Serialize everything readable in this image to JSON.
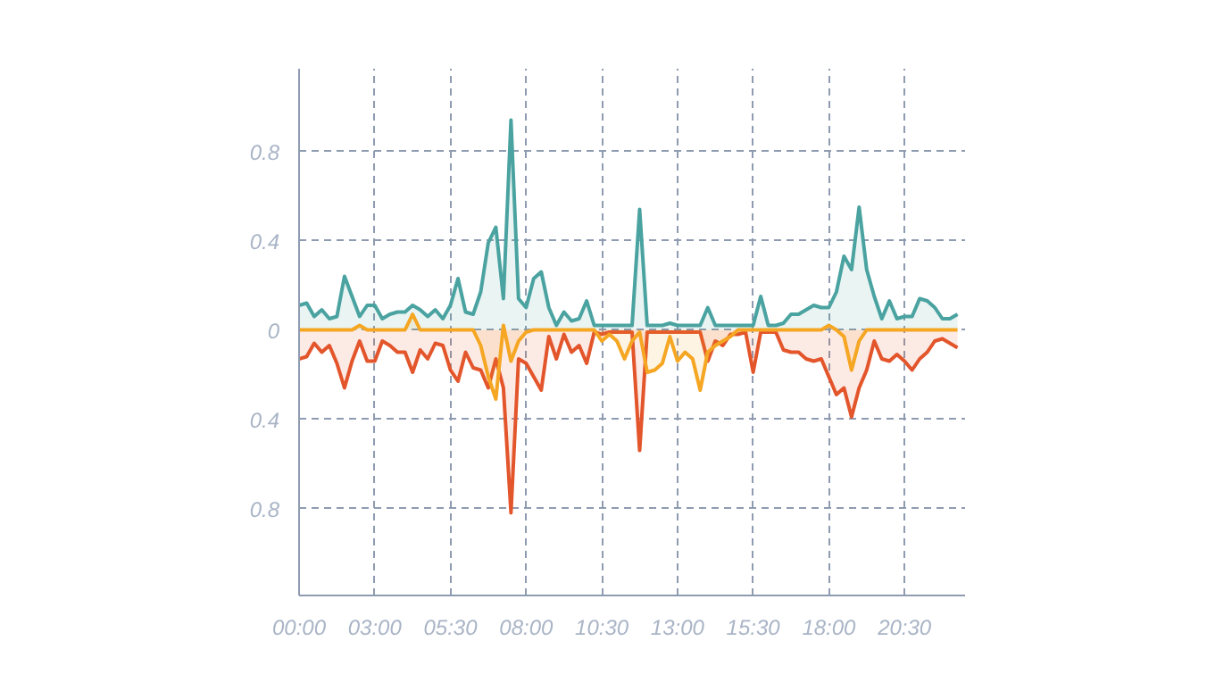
{
  "chart_data": {
    "type": "area",
    "categories": [
      "00:00",
      null,
      null,
      null,
      null,
      null,
      null,
      null,
      null,
      null,
      "03:00",
      null,
      null,
      null,
      null,
      null,
      null,
      null,
      null,
      null,
      "05:30",
      null,
      null,
      null,
      null,
      null,
      null,
      null,
      null,
      null,
      "08:00",
      null,
      null,
      null,
      null,
      null,
      null,
      null,
      null,
      null,
      "10:30",
      null,
      null,
      null,
      null,
      null,
      null,
      null,
      null,
      null,
      "13:00",
      null,
      null,
      null,
      null,
      null,
      null,
      null,
      null,
      null,
      "15:30",
      null,
      null,
      null,
      null,
      null,
      null,
      null,
      null,
      null,
      "18:00",
      null,
      null,
      null,
      null,
      null,
      null,
      null,
      null,
      null,
      "20:30",
      null,
      null,
      null,
      null,
      null,
      null,
      null
    ],
    "series": [
      {
        "color": "#4aa3a0",
        "values": [
          0.11,
          0.12,
          0.06,
          0.09,
          0.05,
          0.06,
          0.24,
          0.15,
          0.06,
          0.11,
          0.11,
          0.05,
          0.07,
          0.08,
          0.08,
          0.11,
          0.09,
          0.06,
          0.09,
          0.05,
          0.11,
          0.23,
          0.08,
          0.07,
          0.17,
          0.39,
          0.46,
          0.14,
          0.94,
          0.14,
          0.1,
          0.23,
          0.26,
          0.1,
          0.02,
          0.08,
          0.04,
          0.05,
          0.13,
          0.02,
          0.02,
          0.02,
          0.02,
          0.02,
          0.02,
          0.54,
          0.02,
          0.02,
          0.02,
          0.03,
          0.02,
          0.02,
          0.02,
          0.02,
          0.1,
          0.02,
          0.02,
          0.02,
          0.02,
          0.02,
          0.02,
          0.15,
          0.02,
          0.02,
          0.03,
          0.07,
          0.07,
          0.09,
          0.11,
          0.1,
          0.1,
          0.17,
          0.33,
          0.27,
          0.55,
          0.27,
          0.15,
          0.05,
          0.13,
          0.05,
          0.06,
          0.06,
          0.14,
          0.13,
          0.1,
          0.05,
          0.05,
          0.07
        ]
      },
      {
        "color": "#e3552b",
        "values": [
          -0.13,
          -0.12,
          -0.06,
          -0.1,
          -0.07,
          -0.15,
          -0.26,
          -0.14,
          -0.05,
          -0.14,
          -0.14,
          -0.05,
          -0.07,
          -0.1,
          -0.1,
          -0.19,
          -0.09,
          -0.13,
          -0.06,
          -0.07,
          -0.18,
          -0.23,
          -0.1,
          -0.17,
          -0.18,
          -0.26,
          -0.13,
          -0.26,
          -0.82,
          -0.13,
          -0.15,
          -0.21,
          -0.27,
          -0.03,
          -0.13,
          -0.02,
          -0.1,
          -0.07,
          -0.15,
          -0.01,
          -0.02,
          -0.01,
          -0.01,
          -0.01,
          -0.01,
          -0.54,
          -0.01,
          -0.01,
          -0.01,
          -0.01,
          -0.01,
          -0.01,
          -0.01,
          -0.01,
          -0.14,
          -0.05,
          -0.07,
          -0.02,
          -0.02,
          -0.01,
          -0.19,
          -0.01,
          -0.01,
          -0.01,
          -0.09,
          -0.1,
          -0.1,
          -0.13,
          -0.14,
          -0.13,
          -0.21,
          -0.29,
          -0.26,
          -0.39,
          -0.26,
          -0.18,
          -0.05,
          -0.13,
          -0.14,
          -0.11,
          -0.14,
          -0.18,
          -0.13,
          -0.1,
          -0.05,
          -0.04,
          -0.06,
          -0.08
        ]
      },
      {
        "color": "#f5a623",
        "values": [
          0,
          0,
          0,
          0,
          0,
          0,
          0,
          0,
          0.02,
          0,
          0,
          0,
          0,
          0,
          0,
          0.07,
          0,
          0,
          0,
          0,
          0,
          0,
          0,
          0,
          -0.07,
          -0.21,
          -0.31,
          0.02,
          -0.14,
          -0.05,
          -0.01,
          0,
          0,
          0,
          0,
          0,
          0,
          0,
          0,
          0,
          -0.05,
          -0.02,
          -0.05,
          -0.13,
          -0.05,
          -0.01,
          -0.19,
          -0.18,
          -0.15,
          -0.03,
          -0.14,
          -0.1,
          -0.13,
          -0.27,
          -0.1,
          -0.07,
          -0.05,
          -0.03,
          0,
          0,
          0,
          0,
          0,
          0,
          0,
          0,
          0,
          0,
          0,
          0,
          0.02,
          0,
          -0.03,
          -0.18,
          -0.05,
          0,
          0,
          0,
          0,
          0,
          0,
          0,
          0,
          0,
          0,
          0,
          0,
          0
        ]
      }
    ],
    "ylim": [
      -1.19,
      1.17
    ],
    "yticks": [
      {
        "value": -0.8,
        "label": "0.8"
      },
      {
        "value": -0.4,
        "label": "0.4"
      },
      0,
      0.4,
      0.8
    ],
    "grid": true
  }
}
